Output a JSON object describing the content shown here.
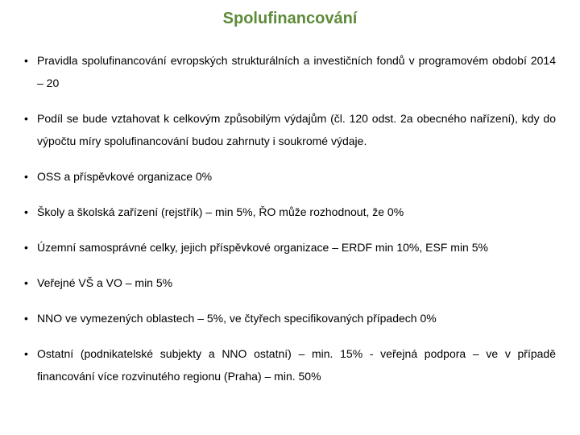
{
  "title": "Spolufinancování",
  "title_color": "#5e8b3a",
  "title_fontsize": 20,
  "body_color": "#000000",
  "body_fontsize": 14,
  "bullets": [
    "Pravidla spolufinancování evropských strukturálních a investičních fondů v programovém období 2014 – 20",
    "Podíl se bude vztahovat k celkovým způsobilým výdajům (čl. 120 odst. 2a obecného nařízení), kdy do výpočtu míry spolufinancování budou zahrnuty i soukromé výdaje.",
    "OSS a příspěvkové organizace 0%",
    "Školy a školská zařízení (rejstřík) – min 5%, ŘO může rozhodnout, že 0%",
    "Územní samosprávné celky, jejich příspěvkové organizace – ERDF min 10%, ESF min 5%",
    "Veřejné VŠ a VO – min 5%",
    "NNO ve vymezených oblastech – 5%, ve čtyřech specifikovaných případech 0%",
    "Ostatní (podnikatelské subjekty a NNO ostatní) – min. 15% - veřejná podpora – ve v případě financování více rozvinutého regionu (Praha) – min. 50%"
  ]
}
